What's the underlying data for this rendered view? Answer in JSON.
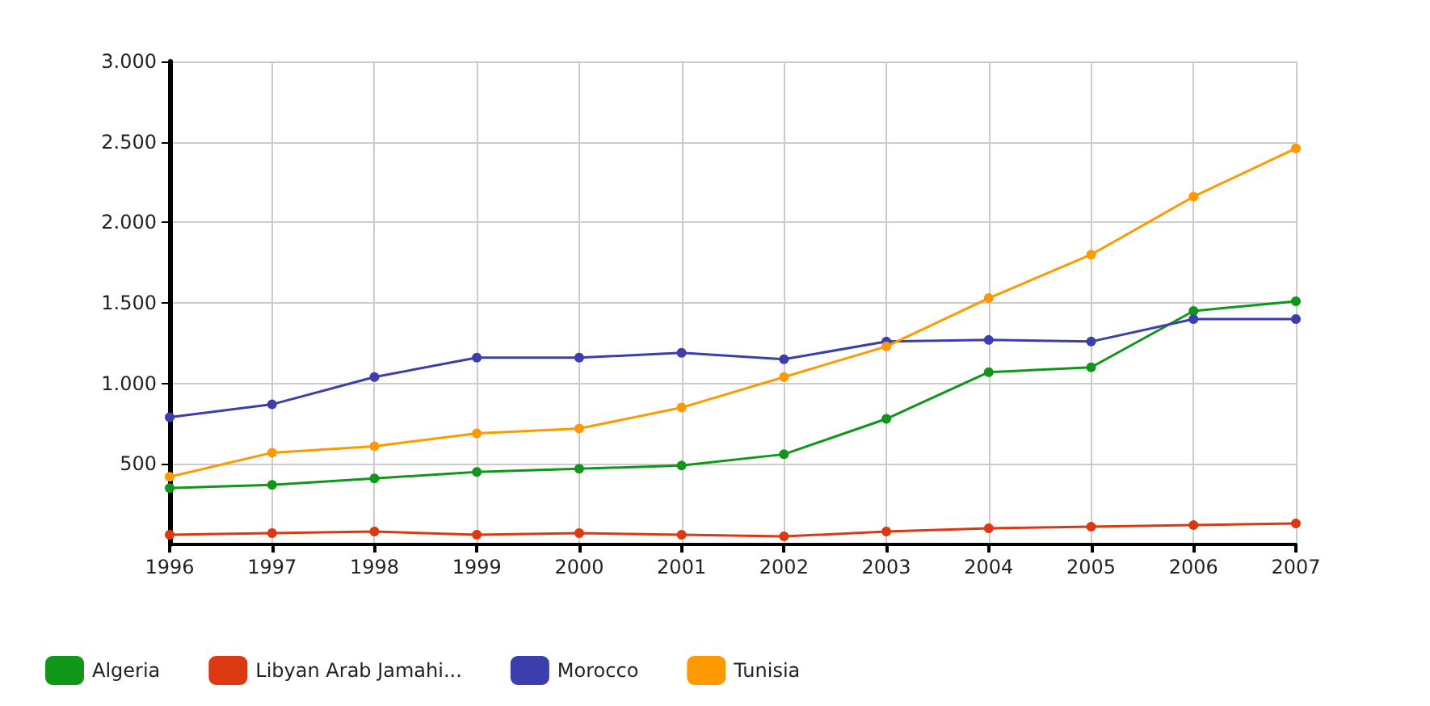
{
  "chart_data": {
    "type": "line",
    "x": [
      1996,
      1997,
      1998,
      1999,
      2000,
      2001,
      2002,
      2003,
      2004,
      2005,
      2006,
      2007
    ],
    "series": [
      {
        "name": "Algeria",
        "color": "#109618",
        "values": [
          350,
          370,
          410,
          450,
          470,
          490,
          560,
          780,
          1070,
          1100,
          1450,
          1510
        ]
      },
      {
        "name": "Libyan Arab Jamahi...",
        "color": "#dc3912",
        "values": [
          60,
          70,
          80,
          60,
          70,
          60,
          50,
          80,
          100,
          110,
          120,
          130
        ]
      },
      {
        "name": "Morocco",
        "color": "#3b3eac",
        "values": [
          790,
          870,
          1040,
          1160,
          1160,
          1190,
          1150,
          1260,
          1270,
          1260,
          1400,
          1400
        ]
      },
      {
        "name": "Tunisia",
        "color": "#ff9900",
        "values": [
          420,
          570,
          610,
          690,
          720,
          850,
          1040,
          1230,
          1530,
          1800,
          2160,
          2460
        ]
      }
    ],
    "xlim": [
      1996,
      2007
    ],
    "xticks": [
      1996,
      1997,
      1998,
      1999,
      2000,
      2001,
      2002,
      2003,
      2004,
      2005,
      2006,
      2007
    ],
    "ylim": [
      0,
      3000
    ],
    "yticks": [
      {
        "value": 500,
        "label": "500"
      },
      {
        "value": 1000,
        "label": "1.000"
      },
      {
        "value": 1500,
        "label": "1.500"
      },
      {
        "value": 2000,
        "label": "2.000"
      },
      {
        "value": 2500,
        "label": "2.500"
      },
      {
        "value": 3000,
        "label": "3.000"
      }
    ],
    "grid": true,
    "legend": "bottom",
    "marker": "circle",
    "line_style": "solid"
  }
}
